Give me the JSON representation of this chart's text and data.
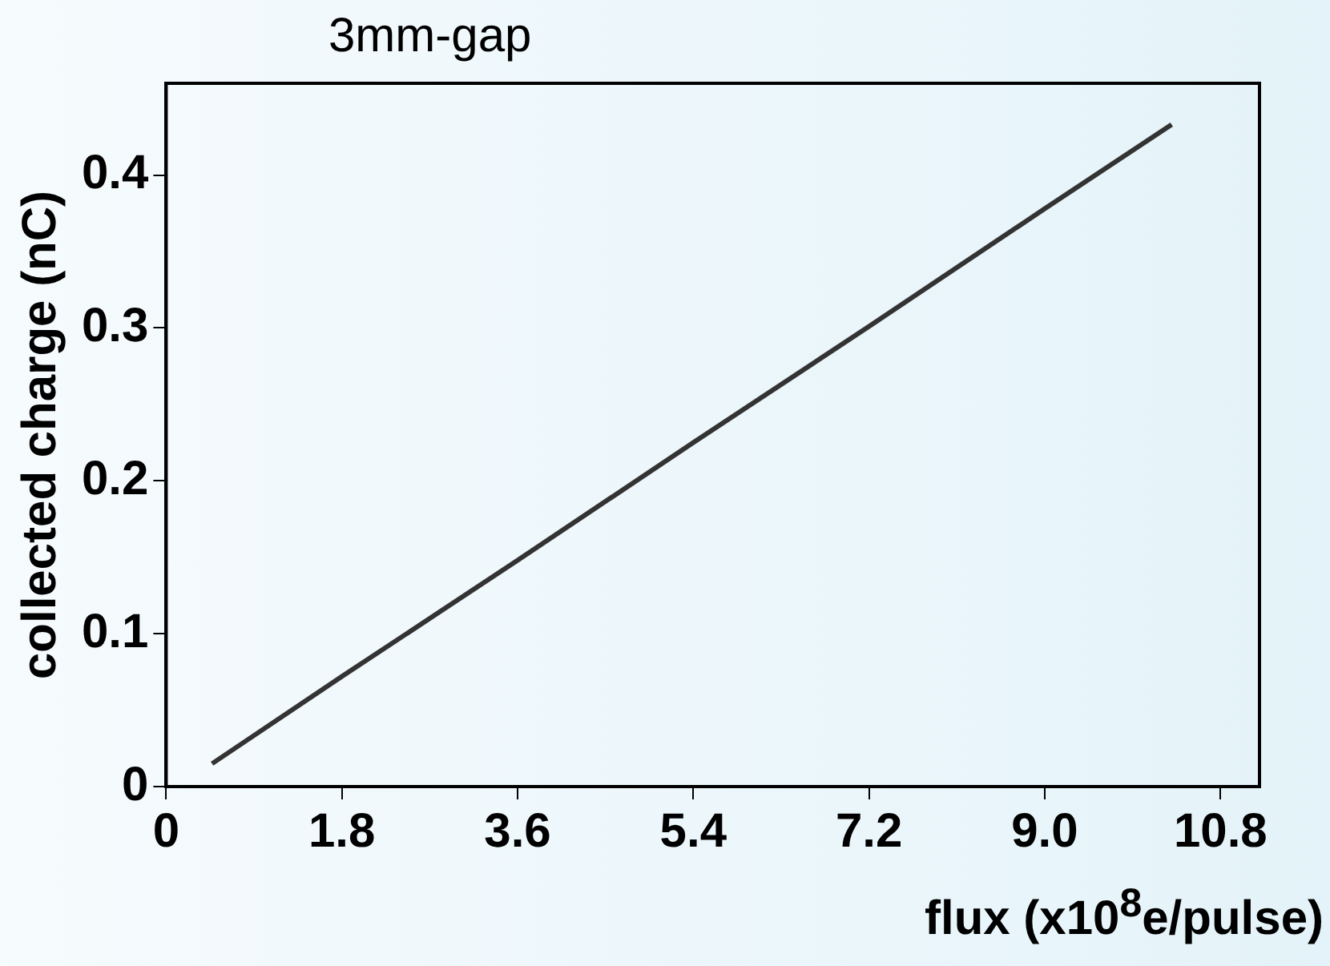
{
  "chart_data": {
    "type": "line",
    "title": "3mm-gap",
    "xlabel": "flux (x10$^{8}$e/pulse)",
    "ylabel": "collected charge (nC)",
    "series": [
      {
        "color": "#333333",
        "x": [
          0.47,
          1.8,
          3.6,
          5.4,
          7.2,
          9.0,
          10.3
        ],
        "values": [
          0.015,
          0.072,
          0.148,
          0.225,
          0.301,
          0.378,
          0.433
        ]
      }
    ],
    "xlim": [
      0,
      11.2
    ],
    "xticks": [
      0,
      1.8,
      3.6,
      5.4,
      7.2,
      {
        "value": 9,
        "label": "9.0"
      },
      10.8
    ],
    "ylim": [
      0,
      0.46
    ],
    "yticks": [
      0,
      0.1,
      0.2,
      0.3,
      0.4
    ],
    "grid": false,
    "legend": false,
    "marker": "none",
    "line_style": "solid"
  }
}
